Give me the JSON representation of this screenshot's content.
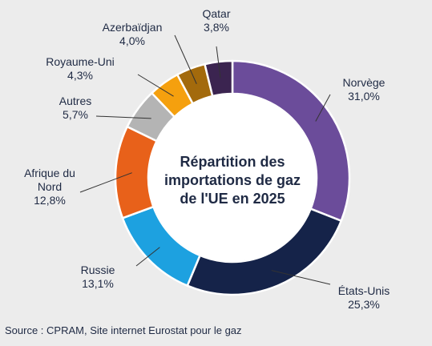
{
  "chart_data": {
    "type": "pie",
    "subtype": "donut",
    "center_title": [
      "Répartition des",
      "importations de gaz",
      "de l'UE en 2025"
    ],
    "slices": [
      {
        "label": "Norvège",
        "value_label": "31,0%",
        "value": 31.0,
        "color": "#6b4c9a"
      },
      {
        "label": "États-Unis",
        "value_label": "25,3%",
        "value": 25.3,
        "color": "#152349"
      },
      {
        "label": "Russie",
        "value_label": "13,1%",
        "value": 13.1,
        "color": "#1da1e0"
      },
      {
        "label": "Afrique du Nord",
        "value_label": "12,8%",
        "value": 12.8,
        "color": "#e8611a"
      },
      {
        "label": "Autres",
        "value_label": "5,7%",
        "value": 5.7,
        "color": "#b4b4b4"
      },
      {
        "label": "Royaume-Uni",
        "value_label": "4,3%",
        "value": 4.3,
        "color": "#f5a00e"
      },
      {
        "label": "Azerbaïdjan",
        "value_label": "4,0%",
        "value": 4.0,
        "color": "#a36a0c"
      },
      {
        "label": "Qatar",
        "value_label": "3,8%",
        "value": 3.8,
        "color": "#3b2450"
      }
    ],
    "legend": "none (direct labels with leader lines)"
  },
  "source": "Source : CPRAM, Site internet Eurostat pour le gaz"
}
